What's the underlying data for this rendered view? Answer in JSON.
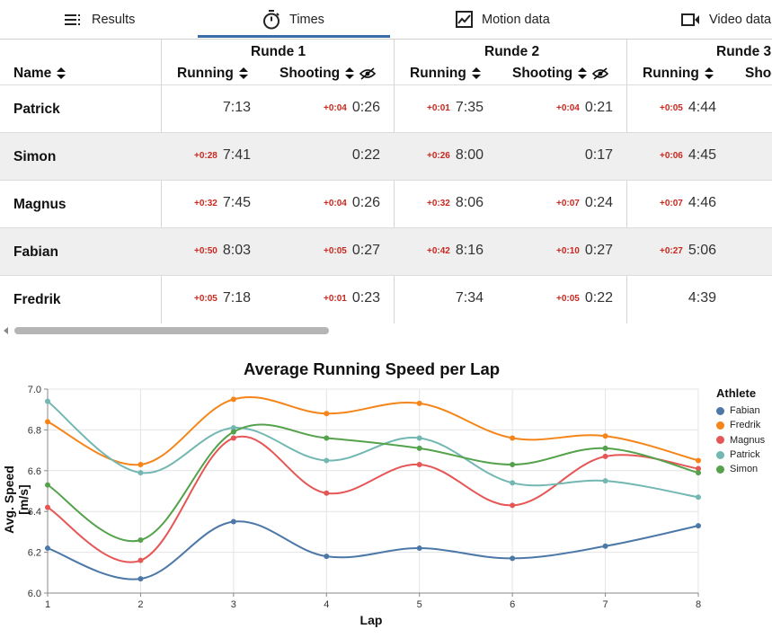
{
  "tabs": [
    {
      "label": "Results",
      "icon": "list-icon"
    },
    {
      "label": "Times",
      "icon": "stopwatch-icon"
    },
    {
      "label": "Motion data",
      "icon": "line-chart-icon"
    },
    {
      "label": "Video data",
      "icon": "video-icon"
    }
  ],
  "active_tab": "Times",
  "table": {
    "name_header": "Name",
    "rounds": [
      {
        "label": "Runde 1",
        "running": "Running",
        "shooting": "Shooting"
      },
      {
        "label": "Runde 2",
        "running": "Running",
        "shooting": "Shooting"
      },
      {
        "label": "Runde 3",
        "running": "Running",
        "shooting": "Shoo"
      }
    ],
    "rows": [
      {
        "name": "Patrick",
        "cells": [
          {
            "diff": "",
            "time": "7:13"
          },
          {
            "diff": "+0:04",
            "time": "0:26"
          },
          {
            "diff": "+0:01",
            "time": "7:35"
          },
          {
            "diff": "+0:04",
            "time": "0:21"
          },
          {
            "diff": "+0:05",
            "time": "4:44"
          }
        ]
      },
      {
        "name": "Simon",
        "cells": [
          {
            "diff": "+0:28",
            "time": "7:41"
          },
          {
            "diff": "",
            "time": "0:22"
          },
          {
            "diff": "+0:26",
            "time": "8:00"
          },
          {
            "diff": "",
            "time": "0:17"
          },
          {
            "diff": "+0:06",
            "time": "4:45"
          }
        ]
      },
      {
        "name": "Magnus",
        "cells": [
          {
            "diff": "+0:32",
            "time": "7:45"
          },
          {
            "diff": "+0:04",
            "time": "0:26"
          },
          {
            "diff": "+0:32",
            "time": "8:06"
          },
          {
            "diff": "+0:07",
            "time": "0:24"
          },
          {
            "diff": "+0:07",
            "time": "4:46"
          }
        ]
      },
      {
        "name": "Fabian",
        "cells": [
          {
            "diff": "+0:50",
            "time": "8:03"
          },
          {
            "diff": "+0:05",
            "time": "0:27"
          },
          {
            "diff": "+0:42",
            "time": "8:16"
          },
          {
            "diff": "+0:10",
            "time": "0:27"
          },
          {
            "diff": "+0:27",
            "time": "5:06"
          }
        ]
      },
      {
        "name": "Fredrik",
        "cells": [
          {
            "diff": "+0:05",
            "time": "7:18"
          },
          {
            "diff": "+0:01",
            "time": "0:23"
          },
          {
            "diff": "",
            "time": "7:34"
          },
          {
            "diff": "+0:05",
            "time": "0:22"
          },
          {
            "diff": "",
            "time": "4:39"
          }
        ]
      }
    ]
  },
  "chart_data": {
    "type": "line",
    "title": "Average Running Speed per Lap",
    "xlabel": "Lap",
    "ylabel": "Avg. Speed [m/s]",
    "x": [
      1,
      2,
      3,
      4,
      5,
      6,
      7,
      8
    ],
    "ylim": [
      6.0,
      7.0
    ],
    "yticks": [
      "6.0",
      "6.2",
      "6.4",
      "6.6",
      "6.8",
      "7.0"
    ],
    "xticks": [
      "1",
      "2",
      "3",
      "4",
      "5",
      "6",
      "7",
      "8"
    ],
    "grid": true,
    "legend_title": "Athlete",
    "legend_position": "right",
    "series": [
      {
        "name": "Fabian",
        "color": "#4c78a8",
        "values": [
          6.22,
          6.07,
          6.35,
          6.18,
          6.22,
          6.17,
          6.23,
          6.33
        ]
      },
      {
        "name": "Fredrik",
        "color": "#f58518",
        "values": [
          6.84,
          6.63,
          6.95,
          6.88,
          6.93,
          6.76,
          6.77,
          6.65
        ]
      },
      {
        "name": "Magnus",
        "color": "#e45756",
        "values": [
          6.42,
          6.16,
          6.76,
          6.49,
          6.63,
          6.43,
          6.67,
          6.61
        ]
      },
      {
        "name": "Patrick",
        "color": "#72b7b2",
        "values": [
          6.94,
          6.59,
          6.81,
          6.65,
          6.76,
          6.54,
          6.55,
          6.47
        ]
      },
      {
        "name": "Simon",
        "color": "#54a24b",
        "values": [
          6.53,
          6.26,
          6.79,
          6.76,
          6.71,
          6.63,
          6.71,
          6.59
        ]
      }
    ]
  }
}
